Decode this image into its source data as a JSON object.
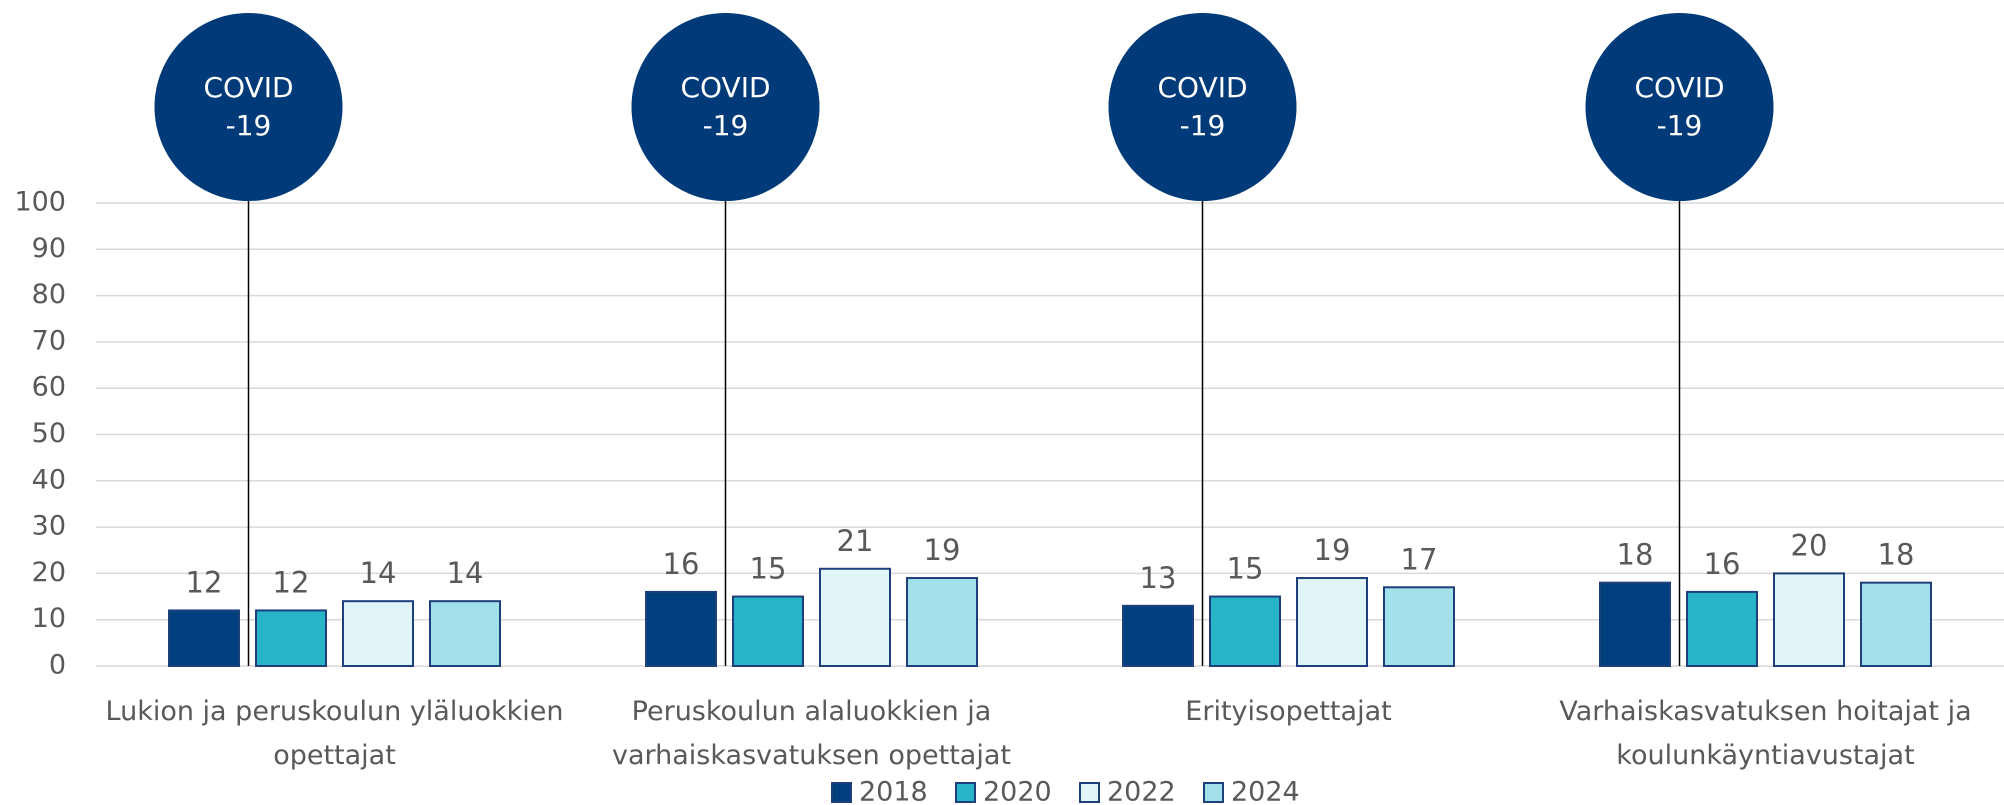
{
  "chart_data": {
    "type": "bar",
    "categories": [
      "Lukion ja peruskoulun yläluokkien\nopettajat",
      "Peruskoulun alaluokkien ja\nvarhaiskasvatuksen opettajat",
      "Erityisopettajat",
      "Varhaiskasvatuksen hoitajat ja\nkoulunkäyntiavustajat"
    ],
    "series": [
      {
        "name": "2018",
        "color": "#003f7d",
        "values": [
          12,
          16,
          13,
          18
        ]
      },
      {
        "name": "2020",
        "color": "#27b3c8",
        "values": [
          12,
          15,
          15,
          16
        ]
      },
      {
        "name": "2022",
        "color": "#e1f4f8",
        "values": [
          14,
          21,
          19,
          20
        ]
      },
      {
        "name": "2024",
        "color": "#a3e1ea",
        "values": [
          14,
          19,
          17,
          18
        ]
      }
    ],
    "annotation": [
      "COVID",
      "-19"
    ],
    "ylim": [
      0,
      100
    ],
    "yticks": [
      0,
      10,
      20,
      30,
      40,
      50,
      60,
      70,
      80,
      90,
      100
    ],
    "grid": true,
    "legend": "bottom"
  }
}
